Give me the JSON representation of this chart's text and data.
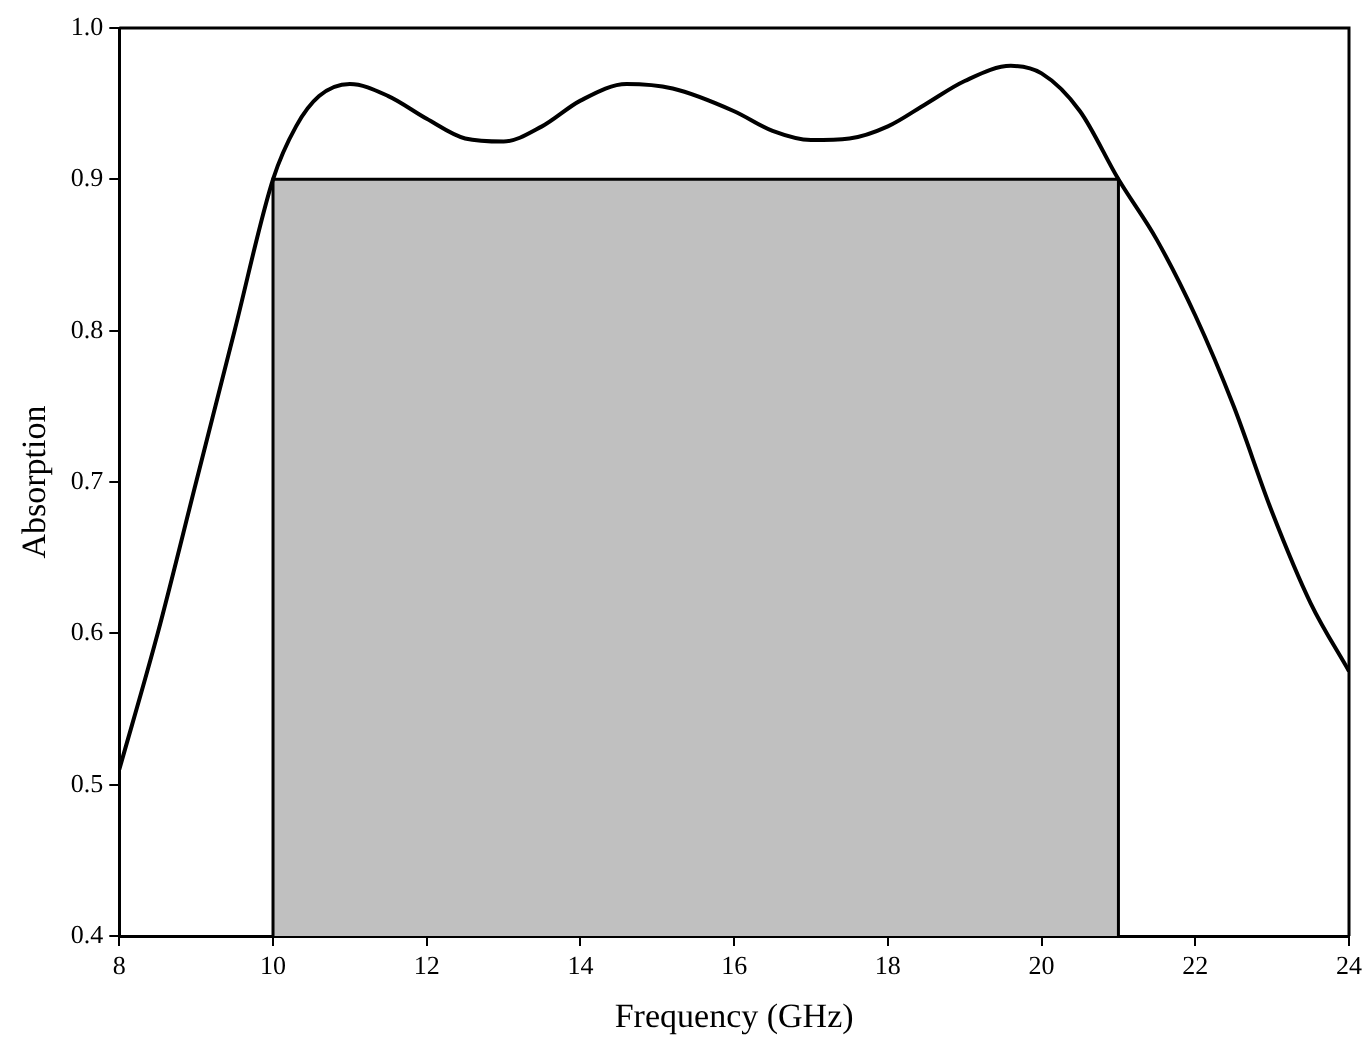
{
  "chart_data": {
    "type": "line",
    "xlabel": "Frequency (GHz)",
    "ylabel": "Absorption",
    "xlim": [
      8,
      24
    ],
    "xticks": [
      8,
      10,
      12,
      14,
      16,
      18,
      20,
      22,
      24
    ],
    "ylim": [
      0.4,
      1.0
    ],
    "yticks": [
      0.4,
      0.5,
      0.6,
      0.7,
      0.8,
      0.9,
      {
        "value": 1,
        "label": "1.0"
      }
    ],
    "grid": false,
    "legend": false,
    "marker": "none",
    "line_style": "solid",
    "series": [
      {
        "type": "area",
        "color": "#c0c0c0",
        "x": [
          10,
          21
        ],
        "values": [
          0.9,
          0.9
        ]
      },
      {
        "color": "#000000",
        "x": [
          8,
          8.5,
          9,
          9.5,
          10,
          10.3,
          10.6,
          11,
          11.5,
          12,
          12.5,
          13,
          13.5,
          14,
          14.6,
          15.2,
          16,
          16.5,
          17,
          17.5,
          18,
          18.5,
          19,
          19.6,
          20,
          20.5,
          21,
          21.5,
          22,
          22.5,
          23,
          23.5,
          24
        ],
        "values": [
          0.51,
          0.6,
          0.7,
          0.8,
          0.9,
          0.935,
          0.955,
          0.963,
          0.955,
          0.94,
          0.927,
          0.925,
          0.935,
          0.952,
          0.963,
          0.96,
          0.945,
          0.932,
          0.926,
          0.927,
          0.935,
          0.95,
          0.965,
          0.975,
          0.97,
          0.945,
          0.9,
          0.86,
          0.81,
          0.75,
          0.68,
          0.62,
          0.575
        ]
      }
    ]
  }
}
